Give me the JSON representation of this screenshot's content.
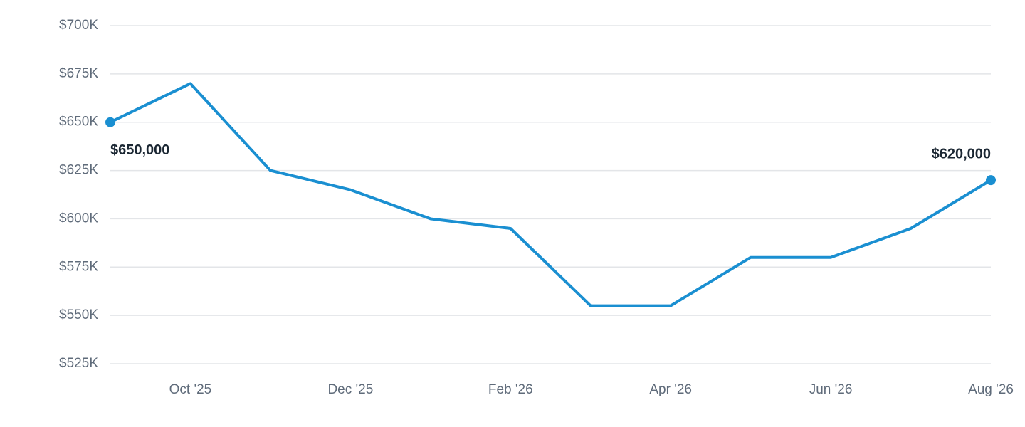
{
  "chart_data": {
    "type": "line",
    "categories": [
      null,
      "Oct '25",
      null,
      "Dec '25",
      null,
      "Feb '26",
      null,
      "Apr '26",
      null,
      "Jun '26",
      null,
      "Aug '26"
    ],
    "values": [
      650000,
      670000,
      625000,
      615000,
      600000,
      595000,
      555000,
      555000,
      580000,
      580000,
      595000,
      620000
    ],
    "value_labels": [
      "$650,000",
      null,
      null,
      null,
      null,
      null,
      null,
      null,
      null,
      null,
      null,
      "$620,000"
    ],
    "color": "#1a8fd1",
    "ylim": [
      525000,
      700000
    ],
    "yticks": [
      {
        "value": 525000,
        "label": "$525K"
      },
      {
        "value": 550000,
        "label": "$550K"
      },
      {
        "value": 575000,
        "label": "$575K"
      },
      {
        "value": 600000,
        "label": "$600K"
      },
      {
        "value": 625000,
        "label": "$625K"
      },
      {
        "value": 650000,
        "label": "$650K"
      },
      {
        "value": 675000,
        "label": "$675K"
      },
      {
        "value": 700000,
        "label": "$700K"
      }
    ],
    "grid": true
  }
}
